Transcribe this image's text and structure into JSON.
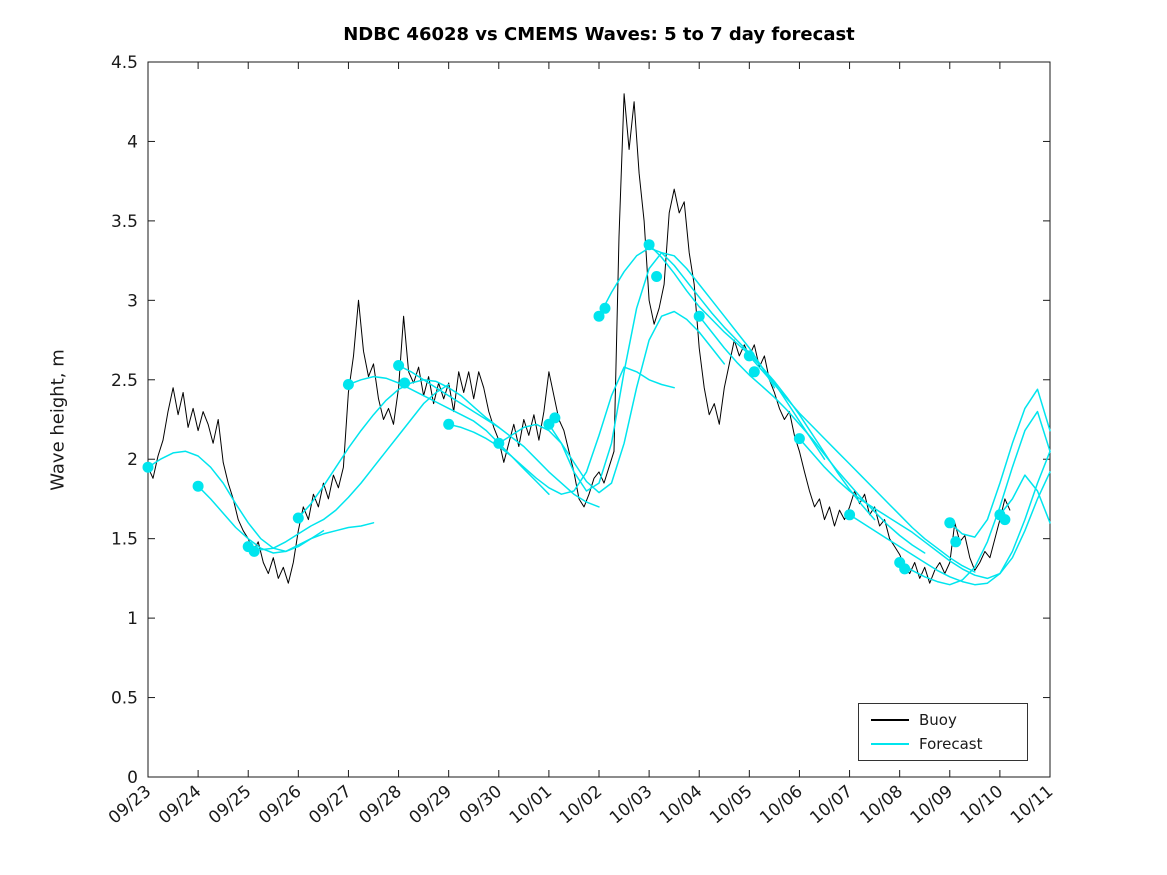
{
  "chart_data": {
    "type": "line",
    "title": "NDBC 46028 vs CMEMS Waves: 5 to 7 day forecast",
    "xlabel": "",
    "ylabel": "Wave height, m",
    "xlim": [
      0,
      18
    ],
    "ylim": [
      0,
      4.5
    ],
    "grid": false,
    "legend_position": "bottom-right",
    "x_tick_labels": [
      "09/23",
      "09/24",
      "09/25",
      "09/26",
      "09/27",
      "09/28",
      "09/29",
      "09/30",
      "10/01",
      "10/02",
      "10/03",
      "10/04",
      "10/05",
      "10/06",
      "10/07",
      "10/08",
      "10/09",
      "10/10",
      "10/11"
    ],
    "y_ticks": [
      0,
      0.5,
      1,
      1.5,
      2,
      2.5,
      3,
      3.5,
      4,
      4.5
    ],
    "y_tick_labels": [
      "0",
      "0.5",
      "1",
      "1.5",
      "2",
      "2.5",
      "3",
      "3.5",
      "4",
      "4.5"
    ],
    "colors": {
      "buoy": "#000000",
      "forecast": "#00e5ee"
    },
    "legend": [
      {
        "label": "Buoy",
        "color": "#000000"
      },
      {
        "label": "Forecast",
        "color": "#00e5ee"
      }
    ],
    "series": [
      {
        "name": "Buoy",
        "role": "buoy",
        "color": "#000000",
        "width": 1,
        "x_start": 0,
        "x_step": 0.1,
        "y": [
          1.95,
          1.88,
          2.02,
          2.12,
          2.3,
          2.45,
          2.28,
          2.42,
          2.2,
          2.32,
          2.18,
          2.3,
          2.22,
          2.1,
          2.25,
          1.98,
          1.85,
          1.75,
          1.62,
          1.55,
          1.5,
          1.42,
          1.48,
          1.35,
          1.28,
          1.38,
          1.25,
          1.32,
          1.22,
          1.35,
          1.55,
          1.7,
          1.62,
          1.78,
          1.7,
          1.85,
          1.75,
          1.9,
          1.82,
          1.95,
          2.42,
          2.65,
          3.0,
          2.68,
          2.52,
          2.6,
          2.38,
          2.25,
          2.32,
          2.22,
          2.45,
          2.9,
          2.55,
          2.48,
          2.58,
          2.4,
          2.52,
          2.35,
          2.48,
          2.38,
          2.48,
          2.3,
          2.55,
          2.42,
          2.55,
          2.38,
          2.55,
          2.45,
          2.3,
          2.2,
          2.12,
          1.98,
          2.1,
          2.22,
          2.08,
          2.25,
          2.15,
          2.28,
          2.12,
          2.3,
          2.55,
          2.4,
          2.25,
          2.18,
          2.05,
          1.92,
          1.75,
          1.7,
          1.78,
          1.88,
          1.92,
          1.85,
          1.95,
          2.05,
          3.4,
          4.3,
          3.95,
          4.25,
          3.8,
          3.5,
          3.0,
          2.85,
          2.95,
          3.1,
          3.55,
          3.7,
          3.55,
          3.62,
          3.3,
          3.1,
          2.7,
          2.45,
          2.28,
          2.35,
          2.22,
          2.45,
          2.6,
          2.75,
          2.65,
          2.72,
          2.65,
          2.72,
          2.58,
          2.65,
          2.5,
          2.42,
          2.32,
          2.25,
          2.3,
          2.15,
          2.05,
          1.92,
          1.8,
          1.7,
          1.75,
          1.62,
          1.7,
          1.58,
          1.68,
          1.62,
          1.7,
          1.8,
          1.72,
          1.78,
          1.65,
          1.7,
          1.58,
          1.62,
          1.5,
          1.45,
          1.4,
          1.32,
          1.28,
          1.35,
          1.25,
          1.32,
          1.22,
          1.3,
          1.35,
          1.28,
          1.35,
          1.6,
          1.48,
          1.52,
          1.38,
          1.3,
          1.35,
          1.42,
          1.38,
          1.5,
          1.62,
          1.75,
          1.68
        ]
      },
      {
        "name": "Forecast 09/23",
        "role": "forecast",
        "color": "#00e5ee",
        "width": 1.5,
        "x_start": 0,
        "x_step": 0.25,
        "y": [
          1.95,
          2.0,
          2.04,
          2.05,
          2.02,
          1.95,
          1.85,
          1.72,
          1.6,
          1.5,
          1.44,
          1.42,
          1.45,
          1.5,
          1.55
        ]
      },
      {
        "name": "Forecast 09/24",
        "role": "forecast",
        "color": "#00e5ee",
        "width": 1.5,
        "x_start": 1,
        "x_step": 0.25,
        "y": [
          1.83,
          1.75,
          1.66,
          1.57,
          1.5,
          1.44,
          1.41,
          1.42,
          1.46,
          1.5,
          1.53,
          1.55,
          1.57,
          1.58,
          1.6
        ]
      },
      {
        "name": "Forecast 09/25",
        "role": "forecast",
        "color": "#00e5ee",
        "width": 1.5,
        "x_start": 2,
        "x_step": 0.25,
        "y": [
          1.45,
          1.43,
          1.44,
          1.48,
          1.53,
          1.58,
          1.62,
          1.68,
          1.76,
          1.85,
          1.95,
          2.05,
          2.15,
          2.25,
          2.35,
          2.42,
          2.47
        ]
      },
      {
        "name": "Forecast 09/26",
        "role": "forecast",
        "color": "#00e5ee",
        "width": 1.5,
        "x_start": 3,
        "x_step": 0.25,
        "y": [
          1.63,
          1.72,
          1.83,
          1.95,
          2.07,
          2.18,
          2.28,
          2.37,
          2.44,
          2.48,
          2.5,
          2.49,
          2.45,
          2.4,
          2.33,
          2.26,
          2.2
        ]
      },
      {
        "name": "Forecast 09/27",
        "role": "forecast",
        "color": "#00e5ee",
        "width": 1.5,
        "x_start": 4,
        "x_step": 0.25,
        "y": [
          2.47,
          2.5,
          2.52,
          2.51,
          2.48,
          2.44,
          2.4,
          2.36,
          2.32,
          2.28,
          2.24,
          2.18,
          2.1,
          2.02,
          1.94,
          1.86,
          1.78
        ]
      },
      {
        "name": "Forecast 09/28",
        "role": "forecast",
        "color": "#00e5ee",
        "width": 1.5,
        "x_start": 5,
        "x_step": 0.25,
        "y": [
          2.59,
          2.55,
          2.5,
          2.45,
          2.4,
          2.35,
          2.3,
          2.25,
          2.2,
          2.14,
          2.08,
          2.0,
          1.92,
          1.85,
          1.78,
          1.73,
          1.7
        ]
      },
      {
        "name": "Forecast 09/29",
        "role": "forecast",
        "color": "#00e5ee",
        "width": 1.5,
        "x_start": 6,
        "x_step": 0.25,
        "y": [
          2.22,
          2.2,
          2.17,
          2.13,
          2.08,
          2.02,
          1.95,
          1.88,
          1.82,
          1.78,
          1.8,
          1.92,
          2.15,
          2.4,
          2.58,
          2.55,
          2.5,
          2.47,
          2.45
        ]
      },
      {
        "name": "Forecast 09/30",
        "role": "forecast",
        "color": "#00e5ee",
        "width": 1.5,
        "x_start": 7,
        "x_step": 0.25,
        "y": [
          2.1,
          2.15,
          2.2,
          2.22,
          2.18,
          2.1,
          1.98,
          1.86,
          1.79,
          1.85,
          2.1,
          2.45,
          2.75,
          2.9,
          2.93,
          2.88,
          2.8,
          2.7,
          2.6
        ]
      },
      {
        "name": "Forecast 10/01",
        "role": "forecast",
        "color": "#00e5ee",
        "width": 1.5,
        "x_start": 8,
        "x_step": 0.25,
        "y": [
          2.22,
          2.1,
          1.92,
          1.8,
          1.85,
          2.1,
          2.55,
          2.95,
          3.2,
          3.3,
          3.28,
          3.2,
          3.1,
          3.0,
          2.9,
          2.8,
          2.7,
          2.58,
          2.45
        ]
      },
      {
        "name": "Forecast 10/02",
        "role": "forecast",
        "color": "#00e5ee",
        "width": 1.5,
        "x_start": 9,
        "x_step": 0.25,
        "y": [
          2.9,
          3.05,
          3.18,
          3.28,
          3.33,
          3.3,
          3.22,
          3.12,
          3.02,
          2.92,
          2.83,
          2.75,
          2.67,
          2.58,
          2.48,
          2.36,
          2.24,
          2.12,
          2.0
        ]
      },
      {
        "name": "Forecast 10/03",
        "role": "forecast",
        "color": "#00e5ee",
        "width": 1.5,
        "x_start": 10,
        "x_step": 0.25,
        "y": [
          3.35,
          3.27,
          3.17,
          3.06,
          2.96,
          2.88,
          2.8,
          2.73,
          2.66,
          2.58,
          2.49,
          2.39,
          2.28,
          2.16,
          2.04,
          1.92,
          1.81,
          1.71,
          1.62
        ]
      },
      {
        "name": "Forecast 10/04",
        "role": "forecast",
        "color": "#00e5ee",
        "width": 1.5,
        "x_start": 11,
        "x_step": 0.25,
        "y": [
          2.9,
          2.8,
          2.7,
          2.61,
          2.53,
          2.46,
          2.39,
          2.31,
          2.22,
          2.13,
          2.03,
          1.93,
          1.84,
          1.75,
          1.67,
          1.59,
          1.52,
          1.46,
          1.41
        ]
      },
      {
        "name": "Forecast 10/05",
        "role": "forecast",
        "color": "#00e5ee",
        "width": 1.5,
        "x_start": 12,
        "x_step": 0.25,
        "y": [
          2.65,
          2.56,
          2.47,
          2.38,
          2.29,
          2.21,
          2.13,
          2.05,
          1.97,
          1.89,
          1.81,
          1.73,
          1.65,
          1.57,
          1.5,
          1.44,
          1.38,
          1.33,
          1.29
        ]
      },
      {
        "name": "Forecast 10/06",
        "role": "forecast",
        "color": "#00e5ee",
        "width": 1.5,
        "x_start": 13,
        "x_step": 0.25,
        "y": [
          2.13,
          2.04,
          1.95,
          1.87,
          1.8,
          1.74,
          1.69,
          1.64,
          1.59,
          1.54,
          1.48,
          1.42,
          1.36,
          1.31,
          1.27,
          1.25,
          1.28,
          1.38,
          1.55,
          1.75,
          1.92
        ]
      },
      {
        "name": "Forecast 10/07",
        "role": "forecast",
        "color": "#00e5ee",
        "width": 1.5,
        "x_start": 14,
        "x_step": 0.25,
        "y": [
          1.65,
          1.6,
          1.55,
          1.5,
          1.45,
          1.4,
          1.35,
          1.3,
          1.26,
          1.23,
          1.21,
          1.22,
          1.28,
          1.42,
          1.62,
          1.85,
          2.05
        ]
      },
      {
        "name": "Forecast 10/08",
        "role": "forecast",
        "color": "#00e5ee",
        "width": 1.5,
        "x_start": 15,
        "x_step": 0.25,
        "y": [
          1.35,
          1.3,
          1.26,
          1.23,
          1.21,
          1.24,
          1.32,
          1.48,
          1.7,
          1.95,
          2.18,
          2.3,
          2.05
        ]
      },
      {
        "name": "Forecast 10/09",
        "role": "forecast",
        "color": "#00e5ee",
        "width": 1.5,
        "x_start": 16,
        "x_step": 0.25,
        "y": [
          1.6,
          1.53,
          1.51,
          1.62,
          1.85,
          2.1,
          2.32,
          2.44,
          2.18
        ]
      },
      {
        "name": "Forecast 10/10",
        "role": "forecast",
        "color": "#00e5ee",
        "width": 1.5,
        "x_start": 17,
        "x_step": 0.25,
        "y": [
          1.65,
          1.75,
          1.9,
          1.8,
          1.6
        ]
      }
    ],
    "markers": {
      "color": "#00e5ee",
      "radius": 5.5,
      "points": [
        [
          0,
          1.95
        ],
        [
          1,
          1.83
        ],
        [
          2,
          1.45
        ],
        [
          2.12,
          1.42
        ],
        [
          3,
          1.63
        ],
        [
          4,
          2.47
        ],
        [
          5,
          2.59
        ],
        [
          5.12,
          2.48
        ],
        [
          6,
          2.22
        ],
        [
          7,
          2.1
        ],
        [
          8,
          2.22
        ],
        [
          8.12,
          2.26
        ],
        [
          9,
          2.9
        ],
        [
          9.12,
          2.95
        ],
        [
          10,
          3.35
        ],
        [
          10.15,
          3.15
        ],
        [
          11,
          2.9
        ],
        [
          12,
          2.65
        ],
        [
          12.1,
          2.55
        ],
        [
          13,
          2.13
        ],
        [
          14,
          1.65
        ],
        [
          15,
          1.35
        ],
        [
          15.1,
          1.31
        ],
        [
          16,
          1.6
        ],
        [
          16.12,
          1.48
        ],
        [
          17,
          1.65
        ],
        [
          17.1,
          1.62
        ]
      ]
    }
  }
}
